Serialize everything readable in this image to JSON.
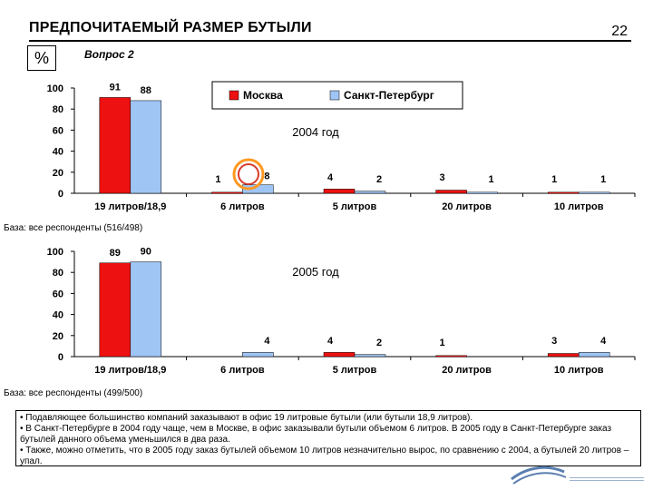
{
  "header": {
    "title": "ПРЕДПОЧИТАЕМЫЙ РАЗМЕР БУТЫЛИ",
    "page_number": "22",
    "unit_badge": "%",
    "question": "Вопрос 2"
  },
  "legend": {
    "moscow": "Москва",
    "spb": "Санкт-Петербург"
  },
  "colors": {
    "moscow": "#ee1111",
    "spb": "#9fc5f5",
    "circle_outer": "#ff9922",
    "circle_inner": "#d63c2a"
  },
  "chart_data": [
    {
      "type": "bar",
      "title": "2004 год",
      "categories": [
        "19 литров/18,9",
        "6 литров",
        "5 литров",
        "20 литров",
        "10 литров"
      ],
      "series": [
        {
          "name": "Москва",
          "values": [
            91,
            1,
            4,
            3,
            1
          ]
        },
        {
          "name": "Санкт-Петербург",
          "values": [
            88,
            8,
            2,
            1,
            1
          ]
        }
      ],
      "ylim": [
        0,
        100
      ],
      "yticks": [
        0,
        20,
        40,
        60,
        80,
        100
      ],
      "legend_position": "top-right",
      "grid": false,
      "base_note": "База: все респонденты (516/498)"
    },
    {
      "type": "bar",
      "title": "2005 год",
      "categories": [
        "19 литров/18,9",
        "6 литров",
        "5 литров",
        "20 литров",
        "10 литров"
      ],
      "series": [
        {
          "name": "Москва",
          "values": [
            89,
            0,
            4,
            1,
            3
          ]
        },
        {
          "name": "Санкт-Петербург",
          "values": [
            90,
            4,
            2,
            0,
            4
          ]
        }
      ],
      "ylim": [
        0,
        100
      ],
      "yticks": [
        0,
        20,
        40,
        60,
        80,
        100
      ],
      "grid": false,
      "base_note": "База: все респонденты (499/500)"
    }
  ],
  "notes": [
    "• Подавляющее большинство компаний заказывают в офис 19 литровые бутыли (или бутыли 18,9 литров).",
    "• В Санкт-Петербурге в 2004 году чаще, чем в Москве, в офис заказывали бутыли объемом 6 литров. В 2005 году в Санкт-Петербурге заказ бутылей данного объема уменьшился в два раза.",
    "• Также, можно отметить, что в 2005 году заказ бутылей объемом 10 литров незначительно вырос, по сравнению с 2004, а бутылей 20 литров – упал."
  ]
}
